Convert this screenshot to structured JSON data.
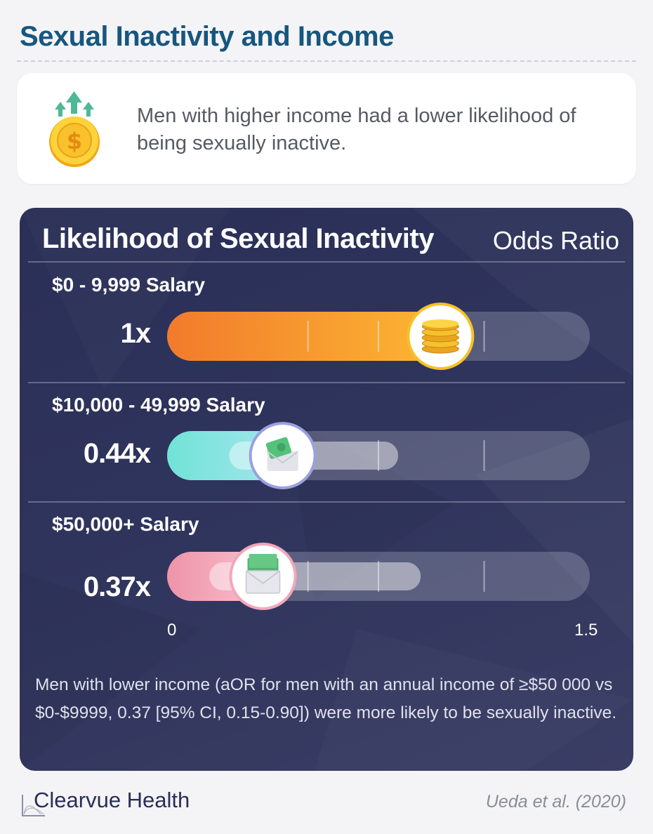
{
  "header": {
    "title": "Sexual Inactivity and Income"
  },
  "info": {
    "text": "Men with higher income had a lower likelihood of being sexually inactive.",
    "icon": "dollar-coin-arrows-icon"
  },
  "chart_data": {
    "type": "bar",
    "orientation": "horizontal",
    "title": "Likelihood of Sexual Inactivity",
    "unit_label": "Odds Ratio",
    "xlim": [
      0,
      1.5
    ],
    "tick_labels": [
      "0",
      "1.5"
    ],
    "categories": [
      "$0 - 9,999 Salary",
      "$10,000 - 49,999 Salary",
      "$50,000+ Salary"
    ],
    "values": [
      1,
      0.44,
      0.37
    ],
    "value_labels": [
      "1x",
      "0.44x",
      "0.37x"
    ],
    "ci": [
      null,
      null,
      [
        0.15,
        0.9
      ]
    ],
    "colors": [
      "#f5832f",
      "#6fe0d6",
      "#f19ab4"
    ],
    "icons": [
      "coin-stack-icon",
      "money-envelope-icon",
      "cash-envelope-icon"
    ]
  },
  "footnote": "Men with lower income (aOR for men with an annual income of ≥$50 000 vs $0-$9999, 0.37 [95% CI, 0.15-0.90]) were more likely to be sexually inactive.",
  "footer": {
    "brand": "Clearvue Health",
    "citation": "Ueda et al. (2020)"
  }
}
